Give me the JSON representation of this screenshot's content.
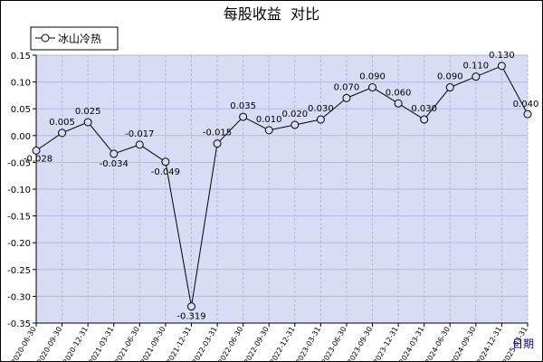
{
  "chart_data": {
    "type": "line",
    "title": "每股收益  对比",
    "xlabel": "日期",
    "ylabel": "",
    "ylim": [
      -0.35,
      0.15
    ],
    "yticks": [
      "0.15",
      "0.10",
      "0.05",
      "0.00",
      "-0.05",
      "-0.10",
      "-0.15",
      "-0.20",
      "-0.25",
      "-0.30",
      "-0.35"
    ],
    "grid": true,
    "legend": "top-left",
    "categories": [
      "2020-06-30",
      "2020-09-30",
      "2020-12-31",
      "2021-03-31",
      "2021-06-30",
      "2021-09-30",
      "2021-12-31",
      "2022-03-31",
      "2022-06-30",
      "2022-09-30",
      "2022-12-31",
      "2023-03-31",
      "2023-06-30",
      "2023-09-30",
      "2023-12-31",
      "2024-03-31",
      "2024-06-30",
      "2024-09-30",
      "2024-12-31",
      "2025-03-31"
    ],
    "series": [
      {
        "name": "冰山冷热",
        "values": [
          -0.028,
          0.005,
          0.025,
          -0.034,
          -0.017,
          -0.049,
          -0.319,
          -0.015,
          0.035,
          0.01,
          0.02,
          0.03,
          0.07,
          0.09,
          0.06,
          0.03,
          0.09,
          0.11,
          0.13,
          0.04
        ],
        "labels": [
          "-0.028",
          "0.005",
          "0.025",
          "-0.034",
          "-0.017",
          "-0.049",
          "-0.319",
          "-0.015",
          "0.035",
          "0.010",
          "0.020",
          "0.030",
          "0.070",
          "0.090",
          "0.060",
          "0.030",
          "0.090",
          "0.110",
          "0.130",
          "0.040"
        ],
        "color": "#000000"
      }
    ],
    "plot_background": "#d8dcf4",
    "grid_color": "#b4b8dc"
  }
}
